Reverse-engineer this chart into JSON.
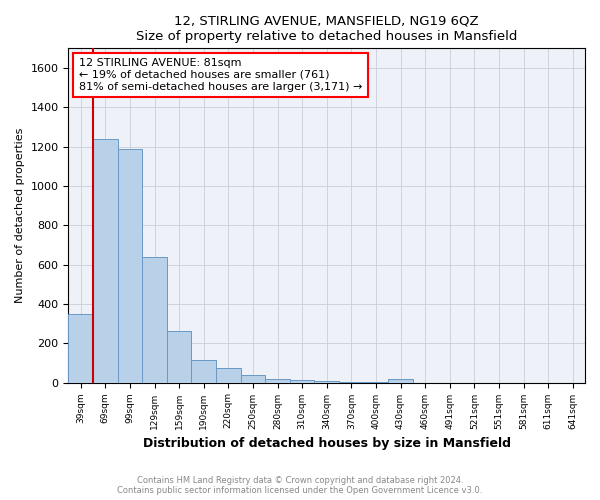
{
  "title": "12, STIRLING AVENUE, MANSFIELD, NG19 6QZ",
  "subtitle": "Size of property relative to detached houses in Mansfield",
  "xlabel": "Distribution of detached houses by size in Mansfield",
  "ylabel": "Number of detached properties",
  "footnote": "Contains HM Land Registry data © Crown copyright and database right 2024.\nContains public sector information licensed under the Open Government Licence v3.0.",
  "annotation_title": "12 STIRLING AVENUE: 81sqm",
  "annotation_line1": "← 19% of detached houses are smaller (761)",
  "annotation_line2": "81% of semi-detached houses are larger (3,171) →",
  "bar_color": "#b8d0e8",
  "bar_edge_color": "#6899c4",
  "highlight_color": "#cc0000",
  "categories": [
    "39sqm",
    "69sqm",
    "99sqm",
    "129sqm",
    "159sqm",
    "190sqm",
    "220sqm",
    "250sqm",
    "280sqm",
    "310sqm",
    "340sqm",
    "370sqm",
    "400sqm",
    "430sqm",
    "460sqm",
    "491sqm",
    "521sqm",
    "551sqm",
    "581sqm",
    "611sqm",
    "641sqm"
  ],
  "values": [
    350,
    1240,
    1190,
    640,
    260,
    115,
    75,
    40,
    20,
    15,
    10,
    5,
    3,
    18,
    0,
    0,
    0,
    0,
    0,
    0,
    0
  ],
  "ylim": [
    0,
    1700
  ],
  "yticks": [
    0,
    200,
    400,
    600,
    800,
    1000,
    1200,
    1400,
    1600
  ],
  "red_line_x": 0.5,
  "background_color": "#eef2f8",
  "grid_color": "#c8cdd8"
}
